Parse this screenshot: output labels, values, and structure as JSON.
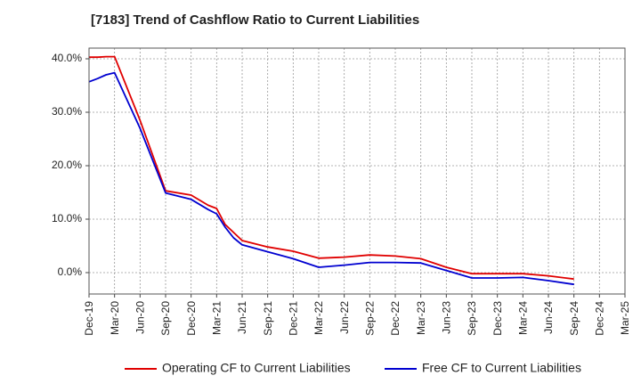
{
  "chart_data": {
    "type": "line",
    "title": "[7183]  Trend of Cashflow Ratio to Current Liabilities",
    "xlabel": "",
    "ylabel": "",
    "x_ticks": [
      "Dec-19",
      "Mar-20",
      "Jun-20",
      "Sep-20",
      "Dec-20",
      "Mar-21",
      "Jun-21",
      "Sep-21",
      "Dec-21",
      "Mar-22",
      "Jun-22",
      "Sep-22",
      "Dec-22",
      "Mar-23",
      "Jun-23",
      "Sep-23",
      "Dec-23",
      "Mar-24",
      "Jun-24",
      "Sep-24",
      "Dec-24",
      "Mar-25"
    ],
    "y_ticks": [
      0,
      10,
      20,
      30,
      40
    ],
    "y_tick_labels": [
      "0.0%",
      "10.0%",
      "20.0%",
      "30.0%",
      "40.0%"
    ],
    "ylim": [
      -4,
      42
    ],
    "grid": true,
    "legend_position": "bottom",
    "series": [
      {
        "name": "Operating CF to Current Liabilities",
        "color": "#e00000",
        "points": [
          [
            "Dec-19",
            40.3
          ],
          [
            "Jan-20",
            40.3
          ],
          [
            "Feb-20",
            40.4
          ],
          [
            "Mar-20",
            40.4
          ],
          [
            "Jun-20",
            28.5
          ],
          [
            "Sep-20",
            15.3
          ],
          [
            "Dec-20",
            14.5
          ],
          [
            "Feb-21",
            12.6
          ],
          [
            "Mar-21",
            12.0
          ],
          [
            "Apr-21",
            9.0
          ],
          [
            "Jun-21",
            6.0
          ],
          [
            "Sep-21",
            4.8
          ],
          [
            "Dec-21",
            4.0
          ],
          [
            "Mar-22",
            2.7
          ],
          [
            "Jun-22",
            2.9
          ],
          [
            "Sep-22",
            3.3
          ],
          [
            "Dec-22",
            3.1
          ],
          [
            "Mar-23",
            2.6
          ],
          [
            "Jun-23",
            1.0
          ],
          [
            "Sep-23",
            -0.2
          ],
          [
            "Dec-23",
            -0.2
          ],
          [
            "Mar-24",
            -0.2
          ],
          [
            "Jun-24",
            -0.6
          ],
          [
            "Sep-24",
            -1.2
          ]
        ]
      },
      {
        "name": "Free CF to Current Liabilities",
        "color": "#0000d0",
        "points": [
          [
            "Dec-19",
            35.7
          ],
          [
            "Jan-20",
            36.3
          ],
          [
            "Feb-20",
            37.0
          ],
          [
            "Mar-20",
            37.4
          ],
          [
            "Jun-20",
            27.0
          ],
          [
            "Sep-20",
            14.9
          ],
          [
            "Dec-20",
            13.7
          ],
          [
            "Feb-21",
            11.8
          ],
          [
            "Mar-21",
            11.0
          ],
          [
            "Apr-21",
            8.5
          ],
          [
            "May-21",
            6.5
          ],
          [
            "Jun-21",
            5.2
          ],
          [
            "Sep-21",
            3.9
          ],
          [
            "Dec-21",
            2.6
          ],
          [
            "Mar-22",
            1.0
          ],
          [
            "Jun-22",
            1.4
          ],
          [
            "Sep-22",
            1.9
          ],
          [
            "Dec-22",
            1.9
          ],
          [
            "Mar-23",
            1.8
          ],
          [
            "Jun-23",
            0.4
          ],
          [
            "Sep-23",
            -1.0
          ],
          [
            "Dec-23",
            -1.0
          ],
          [
            "Mar-24",
            -0.9
          ],
          [
            "Jun-24",
            -1.5
          ],
          [
            "Sep-24",
            -2.2
          ]
        ]
      }
    ]
  }
}
